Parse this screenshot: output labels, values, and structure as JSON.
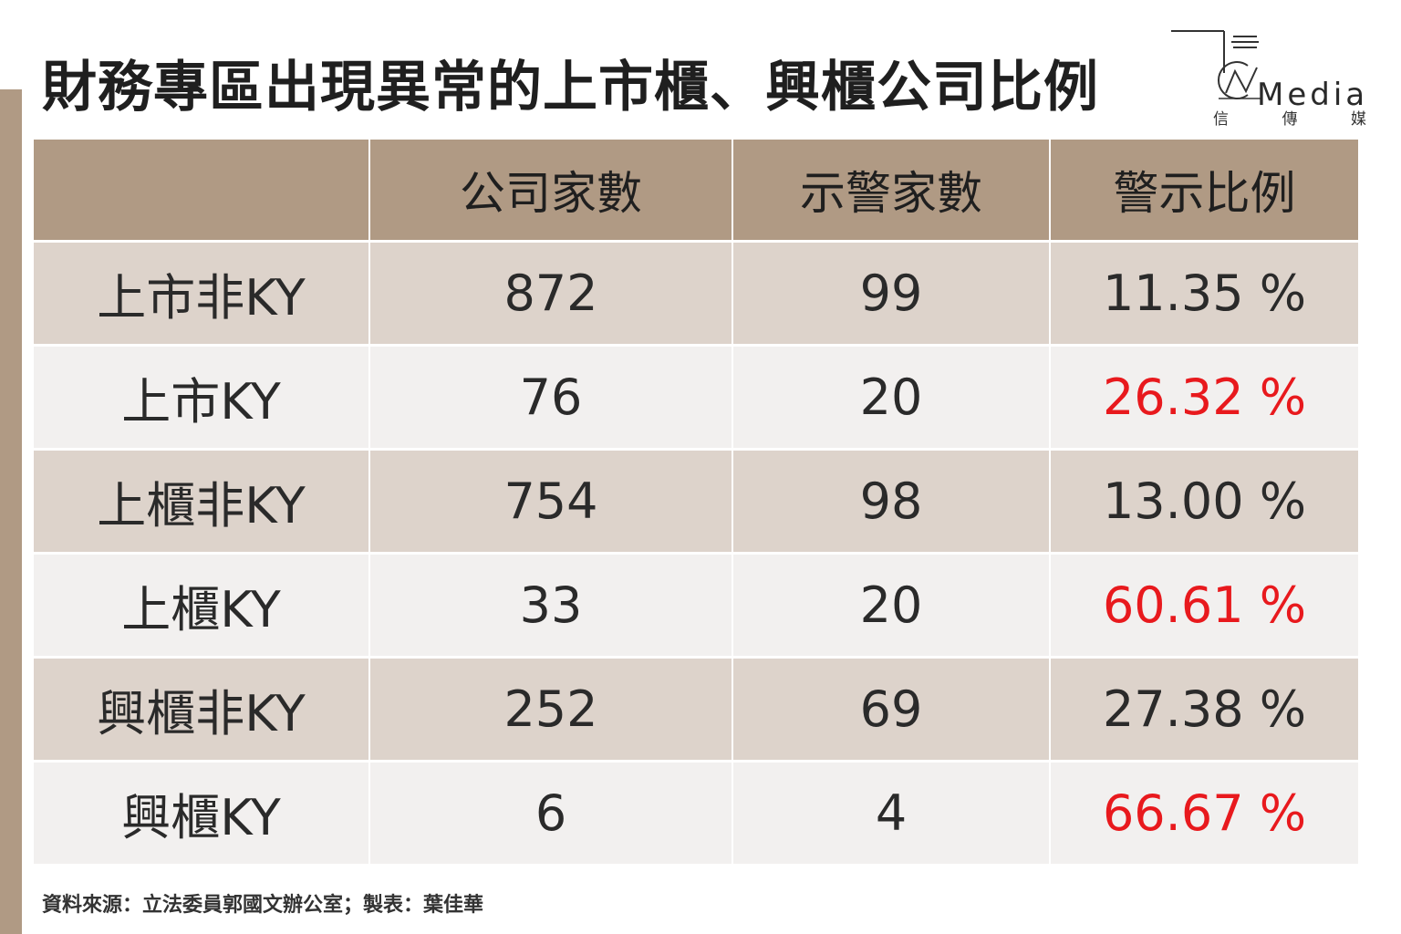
{
  "title": "財務專區出現異常的上市櫃、興櫃公司比例",
  "logo": {
    "word": "Media",
    "sub": [
      "信",
      "傳",
      "媒"
    ]
  },
  "colors": {
    "header_bg": "#b09a84",
    "row_odd": "#ddd3cb",
    "row_even": "#f2f0ef",
    "alert_text": "#e8191d",
    "side_bar": "#b09a84"
  },
  "chart_data": {
    "type": "table",
    "columns": [
      "",
      "公司家數",
      "示警家數",
      "警示比例"
    ],
    "rows": [
      {
        "label": "上市非KY",
        "companies": "872",
        "warnings": "99",
        "ratio": "11.35 %",
        "highlight": false
      },
      {
        "label": "上市KY",
        "companies": "76",
        "warnings": "20",
        "ratio": "26.32 %",
        "highlight": true
      },
      {
        "label": "上櫃非KY",
        "companies": "754",
        "warnings": "98",
        "ratio": "13.00 %",
        "highlight": false
      },
      {
        "label": "上櫃KY",
        "companies": "33",
        "warnings": "20",
        "ratio": "60.61 %",
        "highlight": true
      },
      {
        "label": "興櫃非KY",
        "companies": "252",
        "warnings": "69",
        "ratio": "27.38 %",
        "highlight": false
      },
      {
        "label": "興櫃KY",
        "companies": "6",
        "warnings": "4",
        "ratio": "66.67 %",
        "highlight": true
      }
    ]
  },
  "source": "資料來源：立法委員郭國文辦公室；製表：葉佳華"
}
